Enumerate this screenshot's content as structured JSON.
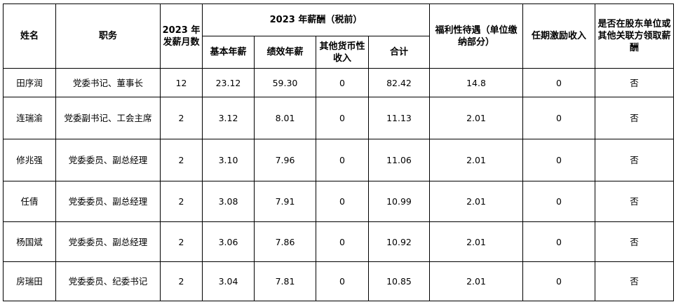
{
  "headers": {
    "name": "姓名",
    "position": "职务",
    "months": "2023 年发薪月数",
    "salary_group": "2023 年薪酬（税前）",
    "base": "基本年薪",
    "performance": "绩效年薪",
    "other": "其他货币性收入",
    "total": "合计",
    "welfare": "福利性待遇（单位缴纳部分）",
    "incentive": "任期激励收入",
    "shareholder": "是否在股东单位或其他关联方领取薪酬"
  },
  "rows": [
    {
      "name": "田序润",
      "position": "党委书记、董事长",
      "months": "12",
      "base": "23.12",
      "performance": "59.30",
      "other": "0",
      "total": "82.42",
      "welfare": "14.8",
      "incentive": "0",
      "shareholder": "否"
    },
    {
      "name": "连瑞渝",
      "position": "党委副书记、工会主席",
      "months": "2",
      "base": "3.12",
      "performance": "8.01",
      "other": "0",
      "total": "11.13",
      "welfare": "2.01",
      "incentive": "0",
      "shareholder": "否"
    },
    {
      "name": "修兆强",
      "position": "党委委员、副总经理",
      "months": "2",
      "base": "3.10",
      "performance": "7.96",
      "other": "0",
      "total": "11.06",
      "welfare": "2.01",
      "incentive": "0",
      "shareholder": "否"
    },
    {
      "name": "任倩",
      "position": "党委委员、副总经理",
      "months": "2",
      "base": "3.08",
      "performance": "7.91",
      "other": "0",
      "total": "10.99",
      "welfare": "2.01",
      "incentive": "0",
      "shareholder": "否"
    },
    {
      "name": "杨国斌",
      "position": "党委委员、副总经理",
      "months": "2",
      "base": "3.06",
      "performance": "7.86",
      "other": "0",
      "total": "10.92",
      "welfare": "2.01",
      "incentive": "0",
      "shareholder": "否"
    },
    {
      "name": "房瑞田",
      "position": "党委委员、纪委书记",
      "months": "2",
      "base": "3.04",
      "performance": "7.81",
      "other": "0",
      "total": "10.85",
      "welfare": "2.01",
      "incentive": "0",
      "shareholder": "否"
    }
  ]
}
